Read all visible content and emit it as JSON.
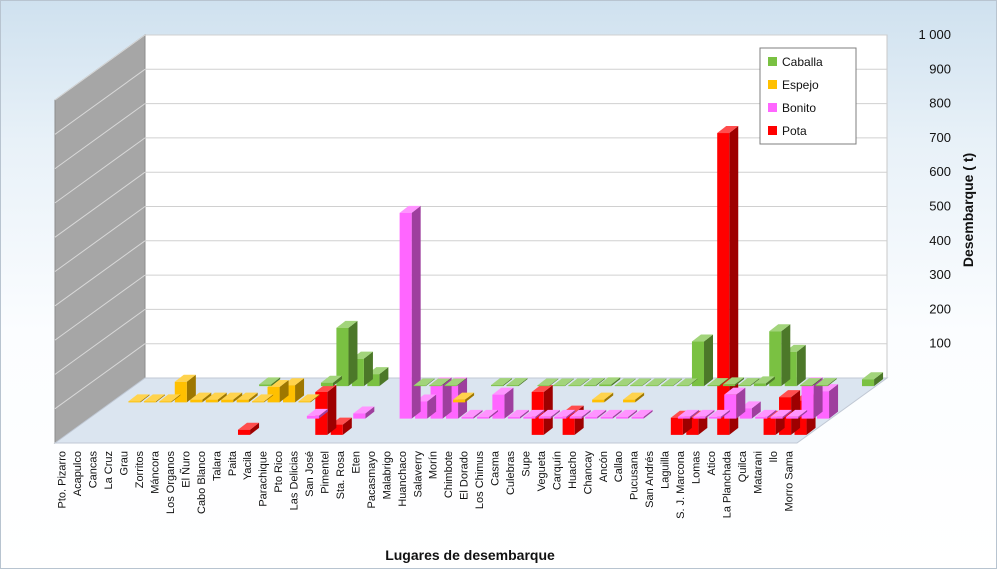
{
  "chart_data": {
    "type": "bar",
    "variant": "3d-clustered-depth",
    "xlabel": "Lugares de desembarque",
    "ylabel": "Desembarque ( t)",
    "ylim": [
      0,
      1000
    ],
    "yticks": [
      "",
      "100",
      "200",
      "300",
      "400",
      "500",
      "600",
      "700",
      "800",
      "900",
      "1 000"
    ],
    "grid": true,
    "legend_position": "top-right",
    "categories": [
      "Pto. Pizarro",
      "Acapulco",
      "Cancas",
      "La Cruz",
      "Grau",
      "Zorritos",
      "Máncora",
      "Los Organos",
      "El Ñuro",
      "Cabo Blanco",
      "Talara",
      "Paita",
      "Yacila",
      "Parachique",
      "Pto Rico",
      "Las Delicias",
      "San José",
      "Pimentel",
      "Sta. Rosa",
      "Eten",
      "Pacasmayo",
      "Malabrigo",
      "Huanchaco",
      "Salaverry",
      "Morín",
      "Chimbote",
      "El Dorado",
      "Los Chimus",
      "Casma",
      "Culebras",
      "Supe",
      "Vegueta",
      "Carquín",
      "Huacho",
      "Chancay",
      "Ancón",
      "Callao",
      "Pucusana",
      "San Andrés",
      "Laguilla",
      "S. J. Marcona",
      "Lomas",
      "Atico",
      "La Planchada",
      "Quilca",
      "Matarani",
      "Ilo",
      "Morro Sama"
    ],
    "series": [
      {
        "name": "Caballa",
        "color": "#7ac142",
        "values": [
          0,
          0,
          0,
          0,
          0,
          0,
          0,
          0,
          5,
          0,
          0,
          0,
          10,
          170,
          80,
          35,
          0,
          0,
          2,
          2,
          2,
          0,
          0,
          3,
          3,
          0,
          2,
          2,
          2,
          3,
          5,
          2,
          2,
          2,
          2,
          2,
          130,
          3,
          5,
          3,
          8,
          160,
          100,
          3,
          3,
          0,
          0,
          20
        ]
      },
      {
        "name": "Espejo",
        "color": "#ffc000",
        "values": [
          0,
          3,
          3,
          3,
          60,
          8,
          8,
          8,
          8,
          3,
          45,
          50,
          3,
          0,
          0,
          0,
          0,
          0,
          0,
          0,
          0,
          0,
          8,
          0,
          0,
          0,
          0,
          0,
          0,
          0,
          0,
          8,
          0,
          8,
          0,
          0,
          0,
          0,
          0,
          0,
          0,
          0,
          0,
          0,
          0,
          0,
          0,
          0
        ]
      },
      {
        "name": "Bonito",
        "color": "#ff66ff",
        "values": [
          0,
          0,
          0,
          0,
          0,
          0,
          0,
          0,
          0,
          0,
          0,
          0,
          0,
          0,
          8,
          0,
          0,
          15,
          0,
          0,
          600,
          50,
          100,
          100,
          5,
          5,
          70,
          5,
          5,
          5,
          5,
          5,
          5,
          5,
          5,
          5,
          0,
          0,
          5,
          5,
          5,
          70,
          30,
          5,
          5,
          5,
          100,
          80
        ]
      },
      {
        "name": "Pota",
        "color": "#ff0000",
        "values": [
          0,
          0,
          0,
          0,
          0,
          0,
          0,
          0,
          0,
          0,
          0,
          15,
          0,
          0,
          0,
          0,
          125,
          30,
          0,
          0,
          0,
          0,
          0,
          0,
          0,
          0,
          0,
          0,
          0,
          0,
          125,
          0,
          65,
          0,
          0,
          0,
          0,
          0,
          0,
          50,
          50,
          0,
          880,
          0,
          0,
          50,
          110,
          100
        ]
      }
    ]
  }
}
